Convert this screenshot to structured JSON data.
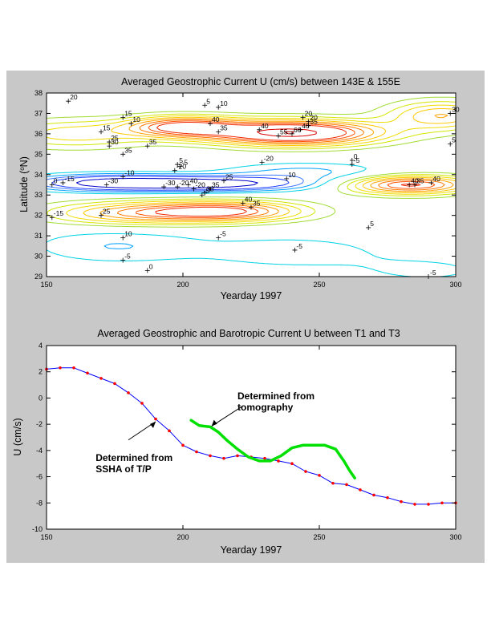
{
  "chart_data": [
    {
      "type": "contour",
      "title": "Averaged Geostrophic Current U (cm/s) between 143E & 155E",
      "xlabel": "Yearday 1997",
      "ylabel": "Latitude (oN)",
      "ylabel_parts": {
        "prefix": "Latitude (",
        "sup": "o",
        "suffix": "N)"
      },
      "xlim": [
        150,
        300
      ],
      "ylim": [
        29,
        38
      ],
      "xticks": [
        150,
        200,
        250,
        300
      ],
      "yticks": [
        29,
        30,
        31,
        32,
        33,
        34,
        35,
        36,
        37,
        38
      ],
      "level_colors": {
        "-30": "#0000c8",
        "-20": "#1e3cff",
        "-15": "#3c78ff",
        "-10": "#00a0ff",
        "-5": "#00d2e6",
        "0": "#32dc96",
        "5": "#a0dc32",
        "10": "#d2e600",
        "15": "#f0dc00",
        "20": "#ffc800",
        "25": "#ffa000",
        "30": "#ff7800",
        "35": "#ff5000",
        "40": "#f02800",
        "55": "#dc0000",
        "60": "#b40000"
      },
      "features": [
        {
          "day": 240,
          "lat": 36.05,
          "amp": 60,
          "sx": 22,
          "sy": 0.42
        },
        {
          "day": 200,
          "lat": 36.35,
          "amp": 40,
          "sx": 14,
          "sy": 0.35
        },
        {
          "day": 160,
          "lat": 36.0,
          "amp": 18,
          "sx": 20,
          "sy": 0.5
        },
        {
          "day": 295,
          "lat": 36.9,
          "amp": 25,
          "sx": 14,
          "sy": 0.5
        },
        {
          "day": 210,
          "lat": 33.55,
          "amp": -35,
          "sx": 24,
          "sy": 0.25
        },
        {
          "day": 172,
          "lat": 33.6,
          "amp": -30,
          "sx": 20,
          "sy": 0.28
        },
        {
          "day": 245,
          "lat": 34.1,
          "amp": -12,
          "sx": 22,
          "sy": 0.35
        },
        {
          "day": 215,
          "lat": 32.2,
          "amp": 40,
          "sx": 20,
          "sy": 0.35
        },
        {
          "day": 180,
          "lat": 32.1,
          "amp": 25,
          "sx": 22,
          "sy": 0.4
        },
        {
          "day": 283,
          "lat": 33.5,
          "amp": 42,
          "sx": 16,
          "sy": 0.32
        },
        {
          "day": 175,
          "lat": 30.5,
          "amp": -10,
          "sx": 22,
          "sy": 0.6
        },
        {
          "day": 240,
          "lat": 30.2,
          "amp": -8,
          "sx": 25,
          "sy": 0.6
        },
        {
          "day": 290,
          "lat": 29.3,
          "amp": -6,
          "sx": 20,
          "sy": 0.5
        }
      ],
      "contour_labels": [
        {
          "x": 158,
          "y": 37.6,
          "text": "20"
        },
        {
          "x": 170,
          "y": 36.1,
          "text": "15"
        },
        {
          "x": 178,
          "y": 36.8,
          "text": "15"
        },
        {
          "x": 181,
          "y": 36.5,
          "text": "10"
        },
        {
          "x": 173,
          "y": 35.6,
          "text": "25"
        },
        {
          "x": 173,
          "y": 35.4,
          "text": "30"
        },
        {
          "x": 178,
          "y": 35.0,
          "text": "35"
        },
        {
          "x": 187,
          "y": 35.4,
          "text": "35"
        },
        {
          "x": 208,
          "y": 37.4,
          "text": "5"
        },
        {
          "x": 213,
          "y": 37.3,
          "text": "10"
        },
        {
          "x": 210,
          "y": 36.5,
          "text": "40"
        },
        {
          "x": 213,
          "y": 36.1,
          "text": "35"
        },
        {
          "x": 228,
          "y": 36.2,
          "text": "40"
        },
        {
          "x": 235,
          "y": 35.9,
          "text": "55"
        },
        {
          "x": 240,
          "y": 36.0,
          "text": "60"
        },
        {
          "x": 243,
          "y": 36.2,
          "text": "40"
        },
        {
          "x": 246,
          "y": 36.4,
          "text": "35"
        },
        {
          "x": 246,
          "y": 36.6,
          "text": "20"
        },
        {
          "x": 244,
          "y": 36.8,
          "text": "20"
        },
        {
          "x": 262,
          "y": 34.7,
          "text": "0"
        },
        {
          "x": 262,
          "y": 34.5,
          "text": "-5"
        },
        {
          "x": 298,
          "y": 37.0,
          "text": "30"
        },
        {
          "x": 298,
          "y": 35.5,
          "text": "5"
        },
        {
          "x": 156,
          "y": 33.6,
          "text": "-15"
        },
        {
          "x": 152,
          "y": 33.5,
          "text": "0"
        },
        {
          "x": 172,
          "y": 33.5,
          "text": "-30"
        },
        {
          "x": 178,
          "y": 33.9,
          "text": "-10"
        },
        {
          "x": 193,
          "y": 33.4,
          "text": "-30"
        },
        {
          "x": 197,
          "y": 34.2,
          "text": "-20"
        },
        {
          "x": 198,
          "y": 34.5,
          "text": "5"
        },
        {
          "x": 199,
          "y": 34.4,
          "text": "-5"
        },
        {
          "x": 202,
          "y": 33.5,
          "text": "40"
        },
        {
          "x": 198,
          "y": 33.4,
          "text": "-20"
        },
        {
          "x": 210,
          "y": 33.3,
          "text": "35"
        },
        {
          "x": 204,
          "y": 33.3,
          "text": "-20"
        },
        {
          "x": 208,
          "y": 33.1,
          "text": "30"
        },
        {
          "x": 207,
          "y": 33.0,
          "text": "-5"
        },
        {
          "x": 215,
          "y": 33.7,
          "text": "25"
        },
        {
          "x": 229,
          "y": 34.6,
          "text": "-20"
        },
        {
          "x": 238,
          "y": 33.8,
          "text": "10"
        },
        {
          "x": 222,
          "y": 32.6,
          "text": "40"
        },
        {
          "x": 225,
          "y": 32.4,
          "text": "35"
        },
        {
          "x": 152,
          "y": 31.9,
          "text": "-15"
        },
        {
          "x": 170,
          "y": 32.0,
          "text": "25"
        },
        {
          "x": 178,
          "y": 30.9,
          "text": "10"
        },
        {
          "x": 178,
          "y": 29.8,
          "text": "-5"
        },
        {
          "x": 187,
          "y": 29.3,
          "text": "0"
        },
        {
          "x": 213,
          "y": 30.9,
          "text": "-5"
        },
        {
          "x": 241,
          "y": 30.3,
          "text": "-5"
        },
        {
          "x": 268,
          "y": 31.4,
          "text": "5"
        },
        {
          "x": 283,
          "y": 33.5,
          "text": "40"
        },
        {
          "x": 285,
          "y": 33.5,
          "text": "35"
        },
        {
          "x": 291,
          "y": 33.6,
          "text": "40"
        },
        {
          "x": 290,
          "y": 29.0,
          "text": "-5"
        }
      ]
    },
    {
      "type": "line",
      "title": "Averaged Geostrophic and Barotropic Current U  between T1 and T3",
      "xlabel": "Yearday 1997",
      "ylabel": "U (cm/s)",
      "xlim": [
        150,
        300
      ],
      "ylim": [
        -10,
        4
      ],
      "xticks": [
        150,
        200,
        250,
        300
      ],
      "yticks": [
        -10,
        -8,
        -6,
        -4,
        -2,
        0,
        2,
        4
      ],
      "series": [
        {
          "color": "#0000ff",
          "marker_color": "#ff0000",
          "x": [
            150,
            155,
            160,
            165,
            170,
            175,
            180,
            185,
            190,
            195,
            200,
            205,
            210,
            215,
            220,
            225,
            230,
            235,
            240,
            245,
            250,
            255,
            260,
            265,
            270,
            275,
            280,
            285,
            290,
            295,
            300
          ],
          "y": [
            2.2,
            2.3,
            2.3,
            1.9,
            1.5,
            1.1,
            0.4,
            -0.4,
            -1.6,
            -2.5,
            -3.6,
            -4.1,
            -4.4,
            -4.6,
            -4.4,
            -4.5,
            -4.6,
            -4.8,
            -5.0,
            -5.6,
            -5.9,
            -6.5,
            -6.6,
            -7.0,
            -7.4,
            -7.6,
            -7.9,
            -8.1,
            -8.1,
            -8.0,
            -8.0
          ]
        },
        {
          "color": "#00e000",
          "x": [
            203,
            206,
            210,
            213,
            216,
            220,
            224,
            228,
            232,
            236,
            240,
            244,
            248,
            252,
            256,
            259,
            261,
            263
          ],
          "y": [
            -1.7,
            -2.1,
            -2.2,
            -2.6,
            -3.2,
            -3.9,
            -4.5,
            -4.8,
            -4.8,
            -4.4,
            -3.8,
            -3.6,
            -3.6,
            -3.6,
            -3.9,
            -4.8,
            -5.5,
            -6.1
          ]
        }
      ],
      "annotations": [
        {
          "lines": [
            "Determined from",
            "tomography"
          ],
          "text_x": 220,
          "text_y": -0.1
        },
        {
          "lines": [
            "Determined from",
            "SSHA of  T/P"
          ],
          "text_x": 168,
          "text_y": -4.8
        }
      ]
    }
  ]
}
